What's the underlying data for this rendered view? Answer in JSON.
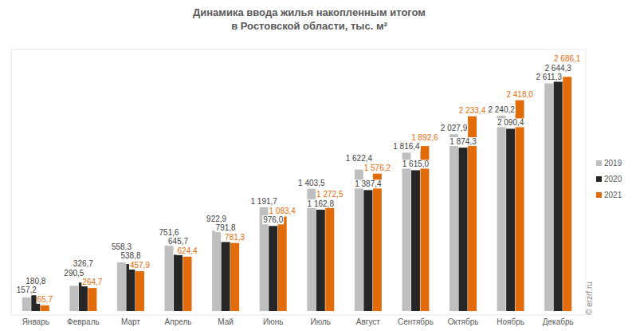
{
  "chart_data": {
    "type": "bar",
    "title": "Динамика ввода жилья накопленным итогом в Ростовской области, тыс. м²",
    "annotations": [
      "© erzrf.ru"
    ],
    "categories": [
      "Январь",
      "Февраль",
      "Март",
      "Апрель",
      "Май",
      "Июнь",
      "Июль",
      "Август",
      "Сентябрь",
      "Октябрь",
      "Ноябрь",
      "Декабрь"
    ],
    "series": [
      {
        "name": "2019",
        "color": "#bfbfbf",
        "values": [
          157.2,
          290.5,
          558.3,
          751.6,
          922.9,
          1191.7,
          1403.5,
          1622.4,
          1816.4,
          2027.9,
          2240.2,
          2611.3
        ],
        "value_labels": [
          "157,2",
          "290,5",
          "558,3",
          "751,6",
          "922,9",
          "1 191,7",
          "1 403,5",
          "1 622,4",
          "1 816,4",
          "2 027,9",
          "2 240,2",
          "2 611,3"
        ]
      },
      {
        "name": "2020",
        "color": "#262626",
        "values": [
          180.8,
          326.7,
          538.8,
          645.7,
          791.8,
          976.0,
          1162.8,
          1387.4,
          1615.0,
          1874.3,
          2090.4,
          2644.3
        ],
        "value_labels": [
          "180,8",
          "326,7",
          "538,8",
          "645,7",
          "791,8",
          "976,0",
          "1 162,8",
          "1 387,4",
          "1 615,0",
          "1 874,3",
          "2 090,4",
          "2 644,3"
        ]
      },
      {
        "name": "2021",
        "color": "#e36c0a",
        "values": [
          65.7,
          264.7,
          457.9,
          624.4,
          781.3,
          1083.4,
          1272.5,
          1576.2,
          1892.6,
          2233.4,
          2418.0,
          2686.1
        ],
        "value_labels": [
          "65,7",
          "264,7",
          "457,9",
          "624,4",
          "781,3",
          "1 083,4",
          "1 272,5",
          "1 576,2",
          "1 892,6",
          "2 233,4",
          "2 418,0",
          "2 686,1"
        ]
      }
    ],
    "ylim": [
      0,
      3000
    ],
    "grid": false,
    "legend": "right",
    "data_labels": true,
    "tick_labels": "x"
  }
}
